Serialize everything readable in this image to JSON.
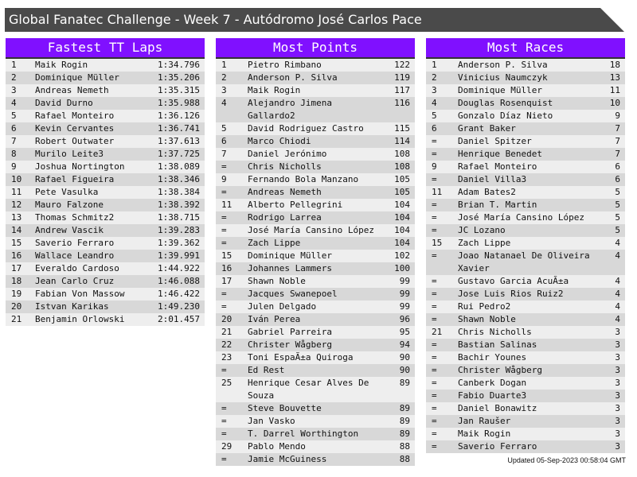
{
  "title": "Global Fanatec Challenge - Week 7 - Autódromo José Carlos Pace",
  "updated": "Updated 05-Sep-2023 00:58:04 GMT",
  "colors": {
    "header": "#8010ff",
    "titlebar": "#4a4a4a",
    "row_light": "#eeeeee",
    "row_dark": "#d8d8d8"
  },
  "panels": [
    {
      "title": "Fastest TT Laps",
      "rows": [
        [
          "1",
          "Maik Rogin",
          "1:34.796"
        ],
        [
          "2",
          "Dominique Müller",
          "1:35.206"
        ],
        [
          "3",
          "Andreas Nemeth",
          "1:35.315"
        ],
        [
          "4",
          "David Durno",
          "1:35.988"
        ],
        [
          "5",
          "Rafael Monteiro",
          "1:36.126"
        ],
        [
          "6",
          "Kevin Cervantes",
          "1:36.741"
        ],
        [
          "7",
          "Robert Outwater",
          "1:37.613"
        ],
        [
          "8",
          "Murilo Leite3",
          "1:37.725"
        ],
        [
          "9",
          "Joshua Nortington",
          "1:38.089"
        ],
        [
          "10",
          "Rafael Figueira",
          "1:38.346"
        ],
        [
          "11",
          "Pete Vasulka",
          "1:38.384"
        ],
        [
          "12",
          "Mauro Falzone",
          "1:38.392"
        ],
        [
          "13",
          "Thomas Schmitz2",
          "1:38.715"
        ],
        [
          "14",
          "Andrew Vascik",
          "1:39.283"
        ],
        [
          "15",
          "Saverio Ferraro",
          "1:39.362"
        ],
        [
          "16",
          "Wallace Leandro",
          "1:39.991"
        ],
        [
          "17",
          "Everaldo Cardoso",
          "1:44.922"
        ],
        [
          "18",
          "Jean Carlo Cruz",
          "1:46.088"
        ],
        [
          "19",
          "Fabian Von Massow",
          "1:46.422"
        ],
        [
          "20",
          "Istvan Karikas",
          "1:49.230"
        ],
        [
          "21",
          "Benjamin Orlowski",
          "2:01.457"
        ]
      ]
    },
    {
      "title": "Most Points",
      "rows": [
        [
          "1",
          "Pietro Rimbano",
          "122"
        ],
        [
          "2",
          "Anderson P. Silva",
          "119"
        ],
        [
          "3",
          "Maik Rogin",
          "117"
        ],
        [
          "4",
          "Alejandro Jimena Gallardo2",
          "116"
        ],
        [
          "5",
          "David Rodriguez Castro",
          "115"
        ],
        [
          "6",
          "Marco Chiodi",
          "114"
        ],
        [
          "7",
          "Daniel Jerónimo",
          "108"
        ],
        [
          "=",
          "Chris Nicholls",
          "108"
        ],
        [
          "9",
          "Fernando Bola Manzano",
          "105"
        ],
        [
          "=",
          "Andreas Nemeth",
          "105"
        ],
        [
          "11",
          "Alberto Pellegrini",
          "104"
        ],
        [
          "=",
          "Rodrigo Larrea",
          "104"
        ],
        [
          "=",
          "José María Cansino López",
          "104"
        ],
        [
          "=",
          "Zach Lippe",
          "104"
        ],
        [
          "15",
          "Dominique Müller",
          "102"
        ],
        [
          "16",
          "Johannes Lammers",
          "100"
        ],
        [
          "17",
          "Shawn Noble",
          "99"
        ],
        [
          "=",
          "Jacques Swanepoel",
          "99"
        ],
        [
          "=",
          "Julen Delgado",
          "99"
        ],
        [
          "20",
          "Iván Perea",
          "96"
        ],
        [
          "21",
          "Gabriel Parreira",
          "95"
        ],
        [
          "22",
          "Christer Wågberg",
          "94"
        ],
        [
          "23",
          "Toni EspaÃ±a Quiroga",
          "90"
        ],
        [
          "=",
          "Ed Rest",
          "90"
        ],
        [
          "25",
          "Henrique Cesar Alves De Souza",
          "89"
        ],
        [
          "=",
          "Steve Bouvette",
          "89"
        ],
        [
          "=",
          "Jan Vasko",
          "89"
        ],
        [
          "=",
          "T. Darrel Worthington",
          "89"
        ],
        [
          "29",
          "Pablo Mendo",
          "88"
        ],
        [
          "=",
          "Jamie McGuiness",
          "88"
        ]
      ]
    },
    {
      "title": "Most Races",
      "rows": [
        [
          "1",
          "Anderson P. Silva",
          "18"
        ],
        [
          "2",
          "Vinicius Naumczyk",
          "13"
        ],
        [
          "3",
          "Dominique Müller",
          "11"
        ],
        [
          "4",
          "Douglas Rosenquist",
          "10"
        ],
        [
          "5",
          "Gonzalo Díaz Nieto",
          "9"
        ],
        [
          "6",
          "Grant Baker",
          "7"
        ],
        [
          "=",
          "Daniel Spitzer",
          "7"
        ],
        [
          "=",
          "Henrique Benedet",
          "7"
        ],
        [
          "9",
          "Rafael Monteiro",
          "6"
        ],
        [
          "=",
          "Daniel Villa3",
          "6"
        ],
        [
          "11",
          "Adam Bates2",
          "5"
        ],
        [
          "=",
          "Brian T. Martin",
          "5"
        ],
        [
          "=",
          "José María Cansino López",
          "5"
        ],
        [
          "=",
          "JC Lozano",
          "5"
        ],
        [
          "15",
          "Zach Lippe",
          "4"
        ],
        [
          "=",
          "Joao Natanael De Oliveira Xavier",
          "4"
        ],
        [
          "=",
          "Gustavo Garcia AcuÃ±a",
          "4"
        ],
        [
          "=",
          "Jose Luis Rios Ruiz2",
          "4"
        ],
        [
          "=",
          "Rui Pedro2",
          "4"
        ],
        [
          "=",
          "Shawn Noble",
          "4"
        ],
        [
          "21",
          "Chris Nicholls",
          "3"
        ],
        [
          "=",
          "Bastian Salinas",
          "3"
        ],
        [
          "=",
          "Bachir Younes",
          "3"
        ],
        [
          "=",
          "Christer Wågberg",
          "3"
        ],
        [
          "=",
          "Canberk Dogan",
          "3"
        ],
        [
          "=",
          "Fabio Duarte3",
          "3"
        ],
        [
          "=",
          "Daniel Bonawitz",
          "3"
        ],
        [
          "=",
          "Jan Raušer",
          "3"
        ],
        [
          "=",
          "Maik Rogin",
          "3"
        ],
        [
          "=",
          "Saverio Ferraro",
          "3"
        ]
      ]
    }
  ]
}
